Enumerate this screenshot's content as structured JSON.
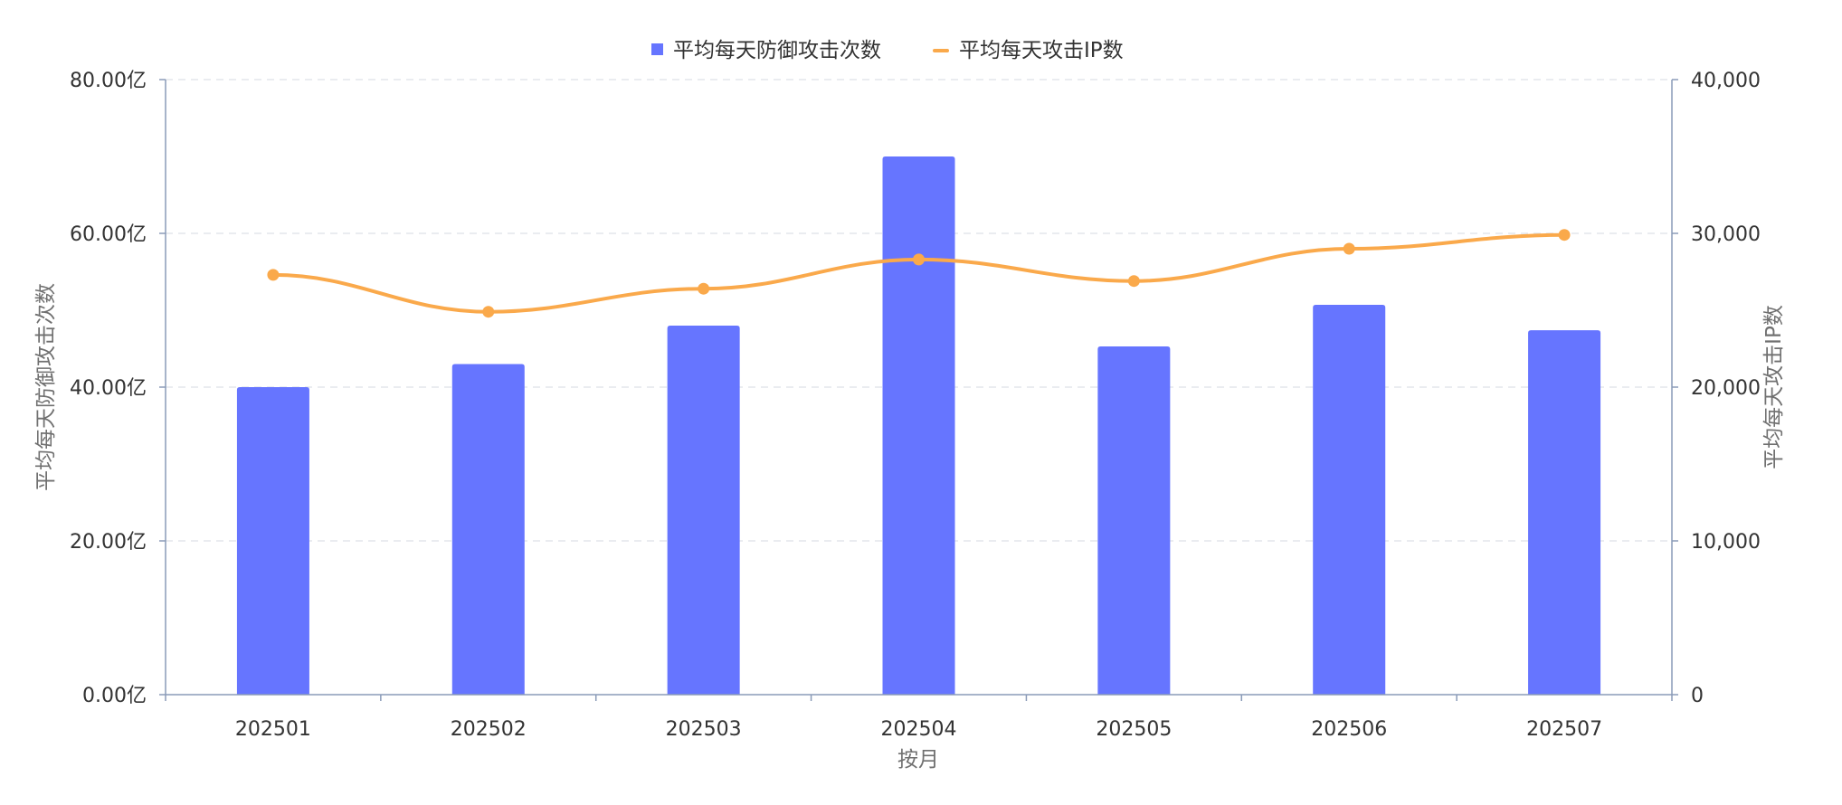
{
  "chart_data": {
    "type": "bar",
    "categories": [
      "202501",
      "202502",
      "202503",
      "202504",
      "202505",
      "202506",
      "202507"
    ],
    "series": [
      {
        "name": "平均每天防御攻击次数",
        "kind": "bar",
        "axis": "left",
        "color": "#6675FF",
        "values": [
          40.0,
          43.0,
          48.0,
          70.0,
          45.3,
          50.7,
          47.4
        ]
      },
      {
        "name": "平均每天攻击IP数",
        "kind": "line",
        "smooth": true,
        "axis": "right",
        "color": "#FAA94B",
        "values": [
          27300,
          24900,
          26400,
          28300,
          26900,
          29000,
          29900
        ]
      }
    ],
    "xlabel": "按月",
    "ylabel_left": "平均每天防御攻击次数",
    "ylabel_right": "平均每天攻击IP数",
    "ylim_left": [
      0,
      80
    ],
    "ylim_right": [
      0,
      40000
    ],
    "yticks_left": [
      "0.00亿",
      "20.00亿",
      "40.00亿",
      "60.00亿",
      "80.00亿"
    ],
    "yticks_right": [
      "0",
      "10,000",
      "20,000",
      "30,000",
      "40,000"
    ],
    "legend": "top-center",
    "grid": true,
    "grid_color": "#E3E6EB",
    "axis_color": "#8A9BB8"
  }
}
